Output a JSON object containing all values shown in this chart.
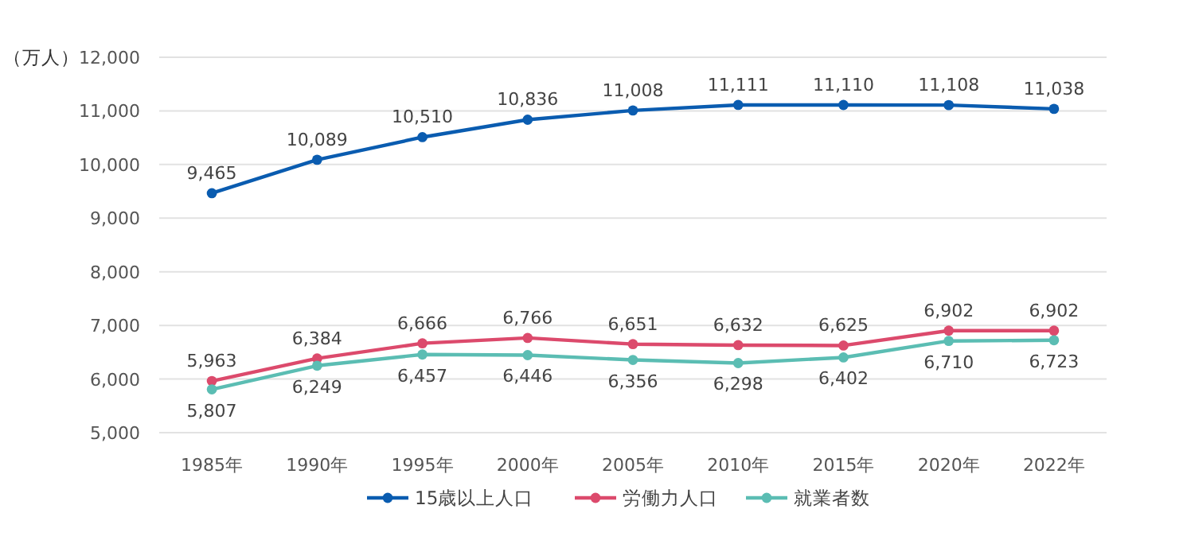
{
  "chart_data": {
    "type": "line",
    "ylabel": "（万人）",
    "categories": [
      "1985年",
      "1990年",
      "1995年",
      "2000年",
      "2005年",
      "2010年",
      "2015年",
      "2020年",
      "2022年"
    ],
    "series": [
      {
        "name": "15歳以上人口",
        "color": "#0a5cb0",
        "values": [
          9465,
          10089,
          10510,
          10836,
          11008,
          11111,
          11110,
          11108,
          11038
        ],
        "value_labels": [
          "9,465",
          "10,089",
          "10,510",
          "10,836",
          "11,008",
          "11,111",
          "11,110",
          "11,108",
          "11,038"
        ]
      },
      {
        "name": "労働力人口",
        "color": "#dc4a6c",
        "values": [
          5963,
          6384,
          6666,
          6766,
          6651,
          6632,
          6625,
          6902,
          6902
        ],
        "value_labels": [
          "5,963",
          "6,384",
          "6,666",
          "6,766",
          "6,651",
          "6,632",
          "6,625",
          "6,902",
          "6,902"
        ]
      },
      {
        "name": "就業者数",
        "color": "#5bbdb3",
        "values": [
          5807,
          6249,
          6457,
          6446,
          6356,
          6298,
          6402,
          6710,
          6723
        ],
        "value_labels": [
          "5,807",
          "6,249",
          "6,457",
          "6,446",
          "6,356",
          "6,298",
          "6,402",
          "6,710",
          "6,723"
        ]
      }
    ],
    "ylim": [
      5000,
      12000
    ],
    "yticks": [
      {
        "value": 5000,
        "label": "5,000"
      },
      {
        "value": 6000,
        "label": "6,000"
      },
      {
        "value": 7000,
        "label": "7,000"
      },
      {
        "value": 8000,
        "label": "8,000"
      },
      {
        "value": 9000,
        "label": "9,000"
      },
      {
        "value": 10000,
        "label": "10,000"
      },
      {
        "value": 11000,
        "label": "11,000"
      },
      {
        "value": 12000,
        "label": "12,000"
      }
    ],
    "grid": "y",
    "legend": "bottom",
    "marker": "circle",
    "line_style": "solid"
  }
}
